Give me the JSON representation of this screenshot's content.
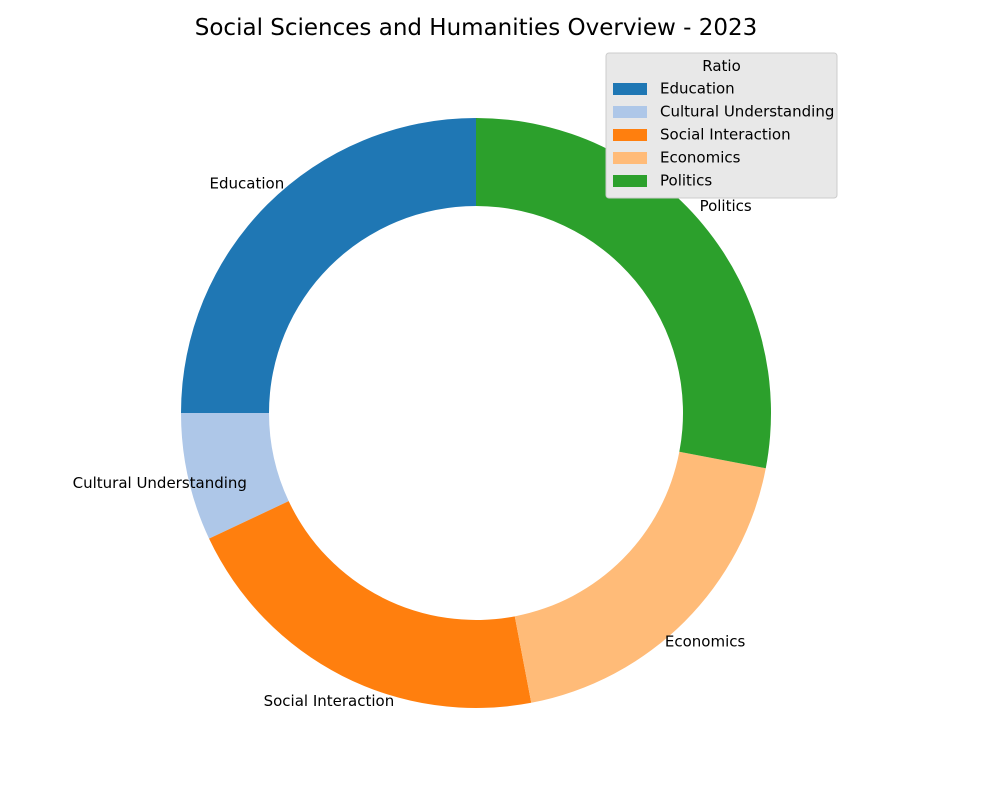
{
  "chart_data": {
    "type": "pie",
    "variant": "donut",
    "title": "Social Sciences and Humanities Overview - 2023",
    "categories": [
      "Education",
      "Cultural Understanding",
      "Social Interaction",
      "Economics",
      "Politics"
    ],
    "values": [
      25,
      7,
      21,
      19,
      28
    ],
    "colors": [
      "#1f77b4",
      "#aec7e8",
      "#ff7f0e",
      "#ffbb78",
      "#2ca02c"
    ],
    "start_angle_deg": 90,
    "direction": "counterclockwise",
    "legend": {
      "title": "Ratio",
      "placement": "top-right",
      "background": "#e8e8e8"
    }
  }
}
